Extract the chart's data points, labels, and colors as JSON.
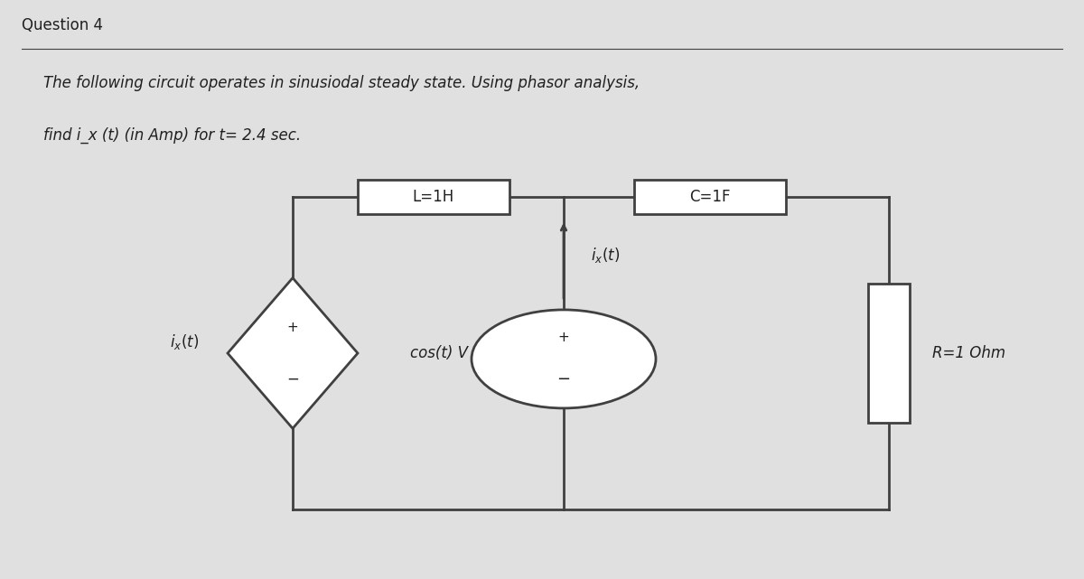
{
  "bg_color": "#e0e0e0",
  "title": "Question 4",
  "line1": "The following circuit operates in sinusiodal steady state. Using phasor analysis,",
  "line2": "find i_x (t) (in Amp) for t= 2.4 sec.",
  "circuit": {
    "inductor_label": "L=1H",
    "capacitor_label": "C=1F",
    "resistor_label": "R=1 Ohm",
    "voltage_label": "cos(t) V",
    "current_label": "i_x(t)",
    "dep_current_label": "i_x(t)"
  },
  "colors": {
    "wire": "#404040",
    "component_fill": "#ffffff",
    "component_border": "#404040",
    "text": "#202020"
  },
  "font_sizes": {
    "title": 12,
    "body": 12,
    "component": 12,
    "label": 12
  }
}
